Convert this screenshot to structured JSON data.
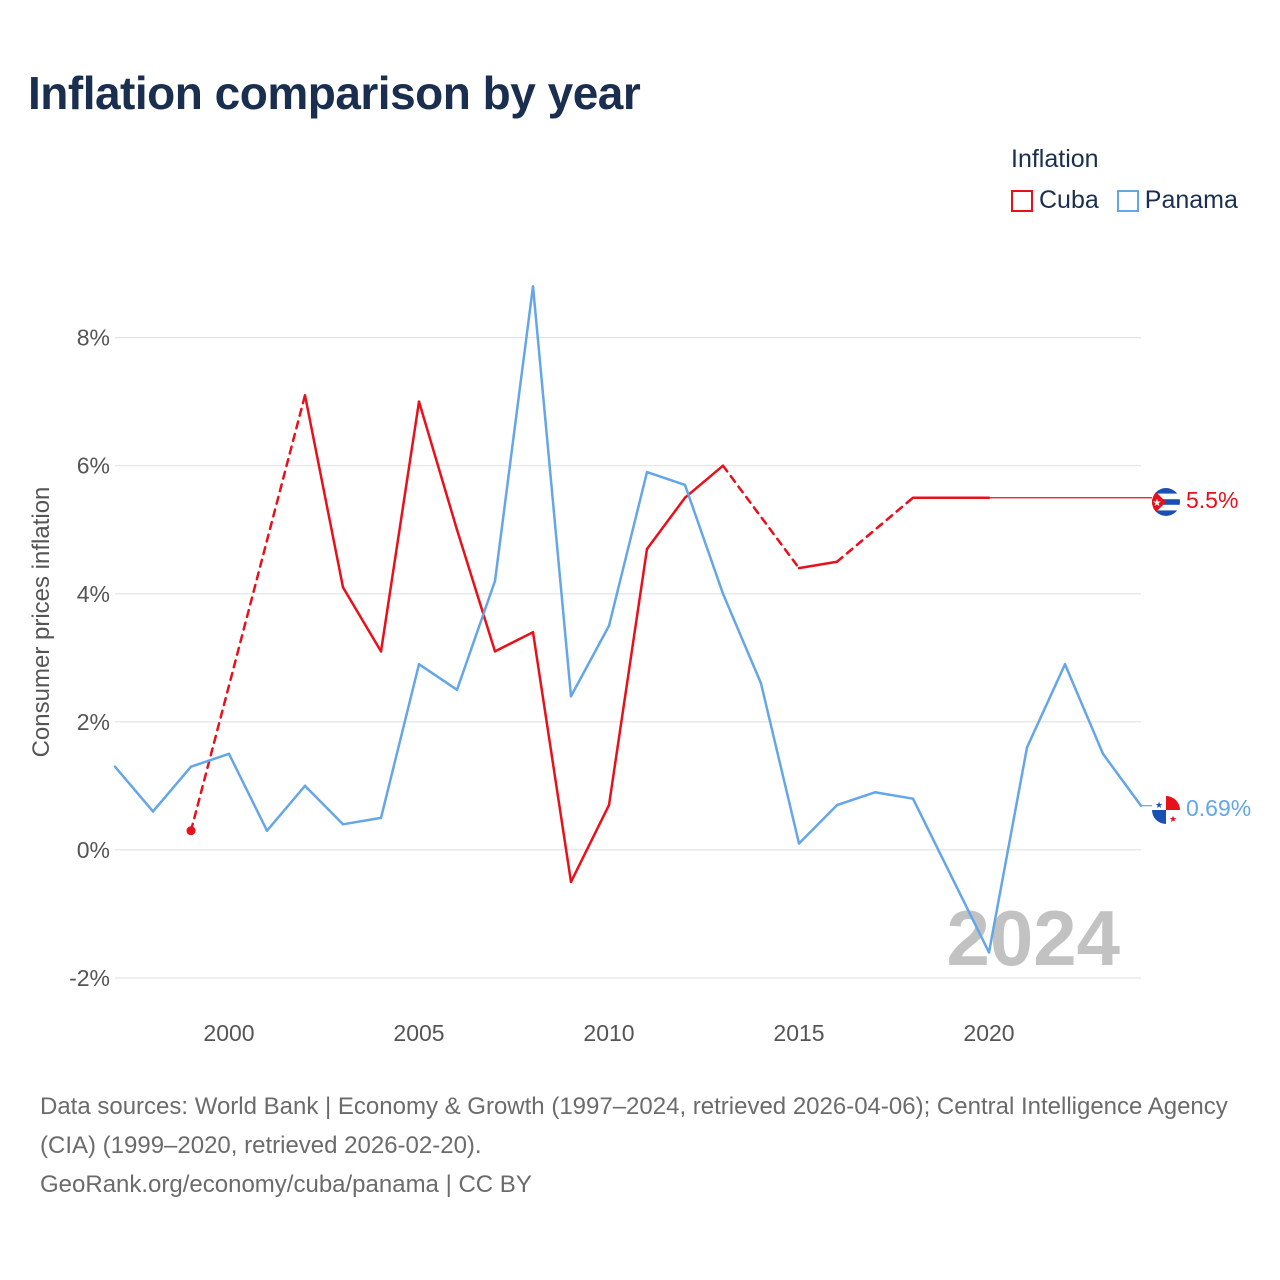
{
  "title": "Inflation comparison by year",
  "legend": {
    "title": "Inflation",
    "items": [
      {
        "label": "Cuba",
        "color": "#e8101a"
      },
      {
        "label": "Panama",
        "color": "#64a6e8"
      }
    ]
  },
  "sources": {
    "line1": "Data sources: World Bank | Economy & Growth (1997–2024, retrieved 2026-04-06); Central Intelligence Agency (CIA) (1999–2020, retrieved 2026-02-20).",
    "line2": "GeoRank.org/economy/cuba/panama | CC BY"
  },
  "chart_data": {
    "type": "line",
    "title": "Inflation comparison by year",
    "xlabel": "",
    "ylabel": "Consumer prices inflation",
    "xlim": [
      1997,
      2024
    ],
    "ylim": [
      -2.5,
      8.9
    ],
    "x_ticks": [
      2000,
      2005,
      2010,
      2015,
      2020
    ],
    "y_ticks": [
      -2,
      0,
      2,
      4,
      6,
      8
    ],
    "y_tick_labels": [
      "-2%",
      "0%",
      "2%",
      "4%",
      "6%",
      "8%"
    ],
    "grid": true,
    "legend_position": "top-right",
    "current_year_label": "2024",
    "series": [
      {
        "name": "Cuba",
        "color": "#e8101a",
        "end_label": "5.5%",
        "end_value": 5.5,
        "points": [
          {
            "x": 1999,
            "y": 0.3
          },
          {
            "x": 2002,
            "y": 7.1
          },
          {
            "x": 2003,
            "y": 4.1
          },
          {
            "x": 2004,
            "y": 3.1
          },
          {
            "x": 2005,
            "y": 7.0
          },
          {
            "x": 2006,
            "y": 5.0
          },
          {
            "x": 2007,
            "y": 3.1
          },
          {
            "x": 2008,
            "y": 3.4
          },
          {
            "x": 2009,
            "y": -0.5
          },
          {
            "x": 2010,
            "y": 0.7
          },
          {
            "x": 2011,
            "y": 4.7
          },
          {
            "x": 2012,
            "y": 5.5
          },
          {
            "x": 2013,
            "y": 6.0
          },
          {
            "x": 2015,
            "y": 4.4
          },
          {
            "x": 2016,
            "y": 4.5
          },
          {
            "x": 2018,
            "y": 5.5
          },
          {
            "x": 2019,
            "y": 5.5
          },
          {
            "x": 2020,
            "y": 5.5
          }
        ]
      },
      {
        "name": "Panama",
        "color": "#64a6e8",
        "end_label": "0.69%",
        "end_value": 0.69,
        "points": [
          {
            "x": 1997,
            "y": 1.3
          },
          {
            "x": 1998,
            "y": 0.6
          },
          {
            "x": 1999,
            "y": 1.3
          },
          {
            "x": 2000,
            "y": 1.5
          },
          {
            "x": 2001,
            "y": 0.3
          },
          {
            "x": 2002,
            "y": 1.0
          },
          {
            "x": 2003,
            "y": 0.4
          },
          {
            "x": 2004,
            "y": 0.5
          },
          {
            "x": 2005,
            "y": 2.9
          },
          {
            "x": 2006,
            "y": 2.5
          },
          {
            "x": 2007,
            "y": 4.2
          },
          {
            "x": 2008,
            "y": 8.8
          },
          {
            "x": 2009,
            "y": 2.4
          },
          {
            "x": 2010,
            "y": 3.5
          },
          {
            "x": 2011,
            "y": 5.9
          },
          {
            "x": 2012,
            "y": 5.7
          },
          {
            "x": 2013,
            "y": 4.0
          },
          {
            "x": 2014,
            "y": 2.6
          },
          {
            "x": 2015,
            "y": 0.1
          },
          {
            "x": 2016,
            "y": 0.7
          },
          {
            "x": 2017,
            "y": 0.9
          },
          {
            "x": 2018,
            "y": 0.8
          },
          {
            "x": 2019,
            "y": -0.4
          },
          {
            "x": 2020,
            "y": -1.6
          },
          {
            "x": 2021,
            "y": 1.6
          },
          {
            "x": 2022,
            "y": 2.9
          },
          {
            "x": 2023,
            "y": 1.5
          },
          {
            "x": 2024,
            "y": 0.69
          }
        ]
      }
    ]
  }
}
